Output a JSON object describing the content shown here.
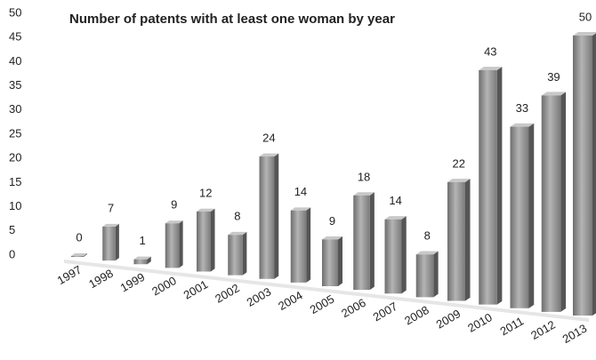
{
  "chart_data": {
    "type": "bar",
    "title": "Number of patents with at least one woman by year",
    "categories": [
      "1997",
      "1998",
      "1999",
      "2000",
      "2001",
      "2002",
      "2003",
      "2004",
      "2005",
      "2006",
      "2007",
      "2008",
      "2009",
      "2010",
      "2011",
      "2012",
      "2013"
    ],
    "values": [
      0,
      7,
      1,
      9,
      12,
      8,
      24,
      14,
      9,
      18,
      14,
      8,
      22,
      43,
      33,
      39,
      50
    ],
    "color": "#8c8c8c",
    "ylim": [
      0,
      50
    ],
    "yticks": [
      0,
      5,
      10,
      15,
      20,
      25,
      30,
      35,
      40,
      45,
      50
    ],
    "grid": false
  }
}
